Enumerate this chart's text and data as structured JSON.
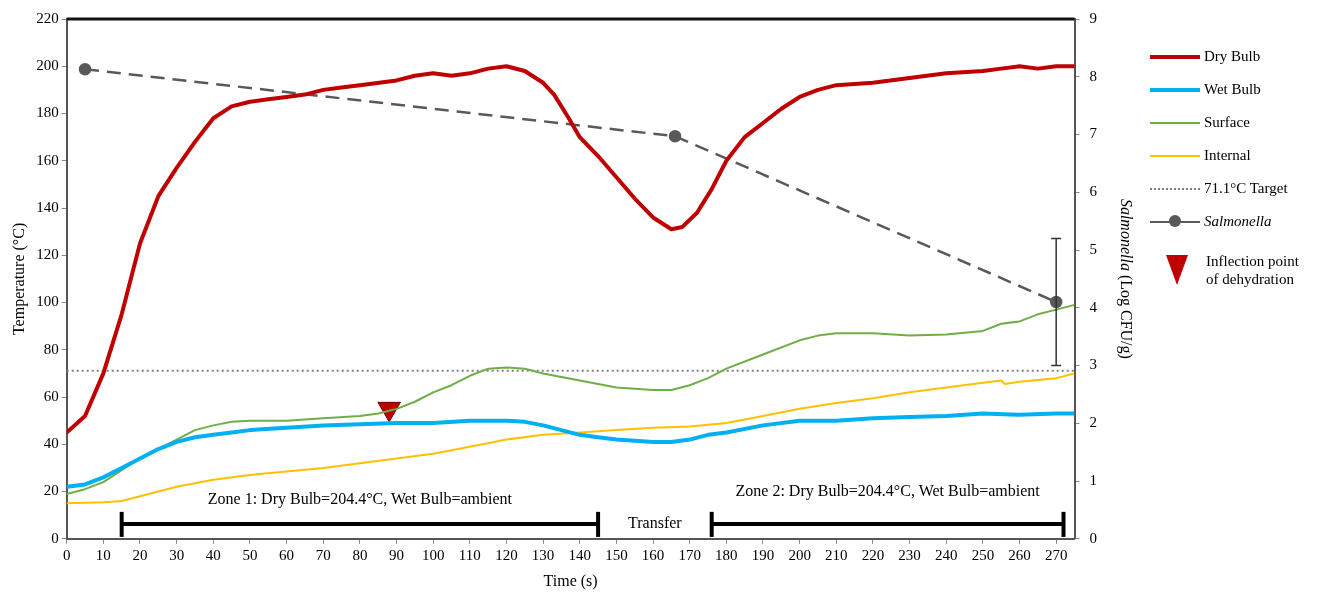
{
  "chart_data": {
    "type": "line",
    "xlabel": "Time (s)",
    "ylabel": "Temperature (°C)",
    "y2label": "Salmonella (Log CFU/g)",
    "xlim": [
      0,
      275
    ],
    "xticks": [
      0,
      10,
      20,
      30,
      40,
      50,
      60,
      70,
      80,
      90,
      100,
      110,
      120,
      130,
      140,
      150,
      160,
      170,
      180,
      190,
      200,
      210,
      220,
      230,
      240,
      250,
      260,
      270
    ],
    "ylim": [
      0,
      220
    ],
    "yticks": [
      0,
      20,
      40,
      60,
      80,
      100,
      120,
      140,
      160,
      180,
      200,
      220
    ],
    "y2lim": [
      0,
      9
    ],
    "y2ticks": [
      0,
      1,
      2,
      3,
      4,
      5,
      6,
      7,
      8,
      9
    ],
    "grid": false,
    "legend": "right",
    "marker": "none",
    "series": [
      {
        "name": "Dry Bulb",
        "color": "#c00000",
        "x": [
          0,
          5,
          10,
          15,
          20,
          25,
          30,
          35,
          40,
          45,
          50,
          55,
          60,
          65,
          70,
          75,
          80,
          90,
          95,
          100,
          105,
          110,
          115,
          120,
          125,
          130,
          133,
          137,
          140,
          145,
          150,
          155,
          160,
          165,
          168,
          172,
          176,
          180,
          185,
          190,
          195,
          200,
          205,
          210,
          220,
          230,
          240,
          250,
          255,
          260,
          265,
          270,
          275
        ],
        "values": [
          45,
          52,
          70,
          95,
          125,
          145,
          157,
          168,
          178,
          183,
          185,
          186,
          187,
          188,
          190,
          191,
          192,
          194,
          196,
          197,
          196,
          197,
          199,
          200,
          198,
          193,
          188,
          178,
          170,
          162,
          153,
          144,
          136,
          131,
          132,
          138,
          148,
          160,
          170,
          176,
          182,
          187,
          190,
          192,
          193,
          195,
          197,
          198,
          199,
          200,
          199,
          200,
          200
        ]
      },
      {
        "name": "Wet Bulb",
        "color": "#00b0f0",
        "x": [
          0,
          5,
          10,
          15,
          20,
          25,
          30,
          35,
          40,
          45,
          50,
          60,
          70,
          80,
          90,
          100,
          110,
          120,
          125,
          130,
          135,
          140,
          145,
          150,
          160,
          165,
          170,
          175,
          180,
          190,
          200,
          210,
          220,
          230,
          240,
          250,
          260,
          270,
          275
        ],
        "values": [
          22,
          23,
          26,
          30,
          34,
          38,
          41,
          43,
          44,
          45,
          46,
          47,
          48,
          48.5,
          49,
          49,
          50,
          50,
          49.5,
          48,
          46,
          44,
          43,
          42,
          41,
          41,
          42,
          44,
          45,
          48,
          50,
          50,
          51,
          51.5,
          52,
          53,
          52.5,
          53,
          53
        ]
      },
      {
        "name": "Surface",
        "color": "#70ad47",
        "x": [
          0,
          5,
          10,
          15,
          20,
          25,
          30,
          35,
          40,
          45,
          50,
          60,
          70,
          80,
          85,
          90,
          95,
          100,
          105,
          110,
          115,
          120,
          125,
          130,
          140,
          150,
          160,
          165,
          170,
          175,
          180,
          190,
          200,
          205,
          210,
          220,
          230,
          240,
          250,
          255,
          260,
          265,
          270,
          275
        ],
        "values": [
          19,
          21,
          24,
          29,
          34,
          38,
          42,
          46,
          48,
          49.5,
          50,
          50,
          51,
          52,
          53,
          55,
          58,
          62,
          65,
          69,
          72,
          72.5,
          72,
          70,
          67,
          64,
          63,
          63,
          65,
          68,
          72,
          78,
          84,
          86,
          87,
          87,
          86,
          86.5,
          88,
          91,
          92,
          95,
          97,
          99
        ]
      },
      {
        "name": "Internal",
        "color": "#ffc000",
        "x": [
          0,
          10,
          15,
          20,
          30,
          40,
          50,
          60,
          70,
          80,
          90,
          100,
          110,
          120,
          130,
          140,
          150,
          160,
          170,
          180,
          190,
          200,
          210,
          220,
          230,
          240,
          250,
          255,
          256,
          260,
          270,
          275
        ],
        "values": [
          15,
          15.5,
          16,
          18,
          22,
          25,
          27,
          28.5,
          30,
          32,
          34,
          36,
          39,
          42,
          44,
          45,
          46,
          47,
          47.5,
          49,
          52,
          55,
          57.5,
          59.5,
          62,
          64,
          66,
          67,
          65.5,
          66.5,
          68,
          70
        ]
      },
      {
        "name": "Salmonella",
        "color": "#595959",
        "axis": "y2",
        "marker": "circle",
        "line_style": "dashed",
        "x": [
          5,
          166,
          270
        ],
        "values": [
          8.13,
          6.97,
          4.1
        ],
        "errors": [
          null,
          null,
          [
            3.0,
            5.2
          ]
        ]
      },
      {
        "name": "Inflection point of dehydration",
        "type": "scatter",
        "color": "#c00000",
        "marker": "triangle",
        "x": [
          88
        ],
        "values": [
          55
        ]
      },
      {
        "color": "#000000",
        "x": [
          15,
          145
        ],
        "values": [
          6.3,
          6.3
        ],
        "errors": [
          [
            0.8,
            11.4
          ],
          [
            0.8,
            11.4
          ]
        ]
      },
      {
        "color": "#000000",
        "x": [
          176,
          272
        ],
        "values": [
          6.3,
          6.3
        ],
        "errors": [
          [
            0.8,
            11.4
          ],
          [
            0.8,
            11.4
          ]
        ]
      }
    ],
    "ref_lines": [
      {
        "axis": "y",
        "value": 71.1,
        "label": "71.1°C Target",
        "color": "#808080",
        "line_style": "dotted"
      }
    ],
    "annotations": [
      "Zone 1: Dry Bulb=204.4°C, Wet Bulb=ambient",
      "Zone 2: Dry Bulb=204.4°C, Wet Bulb=ambient",
      "Transfer"
    ]
  }
}
